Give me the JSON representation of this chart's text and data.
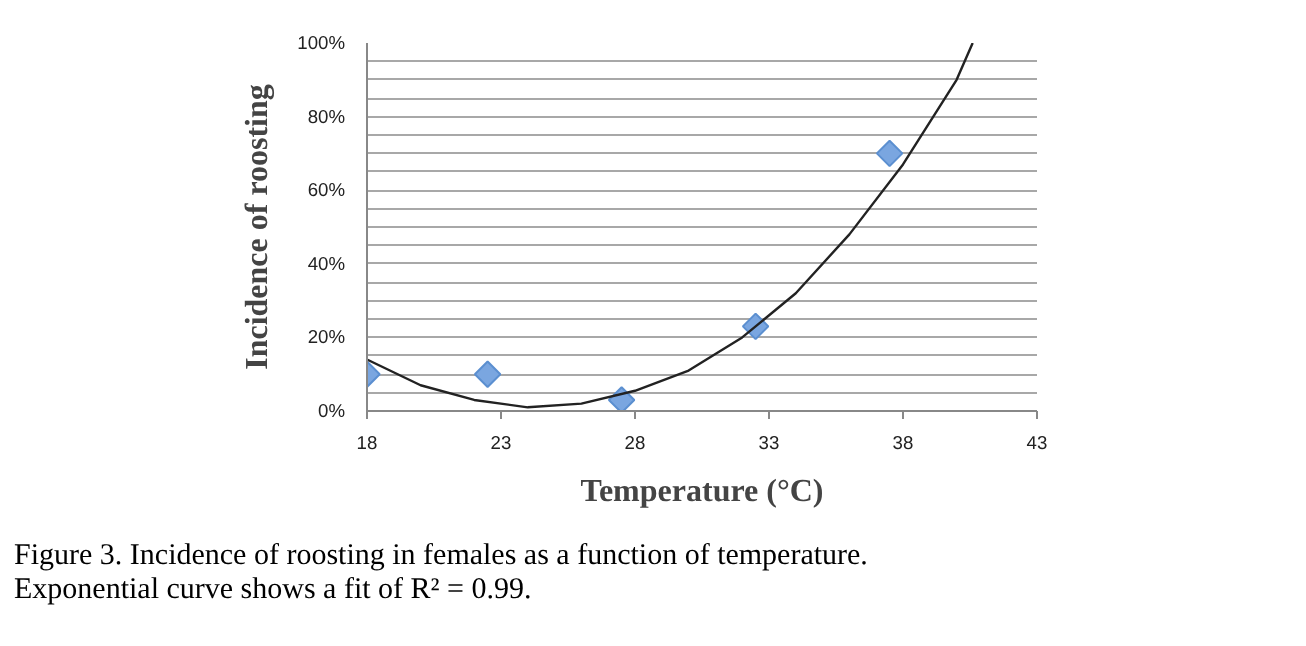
{
  "chart_data": {
    "type": "scatter",
    "xlabel": "Temperature (°C)",
    "ylabel": "Incidence of roosting",
    "x": [
      18,
      22.5,
      27.5,
      32.5,
      37.5
    ],
    "series": [
      {
        "color": "#7aa6e0",
        "marker": "diamond",
        "values": [
          10,
          10,
          3,
          23,
          70
        ]
      },
      {
        "type": "line",
        "color": "#222222",
        "marker": "none",
        "line_style": "solid",
        "x": [
          18,
          20,
          22,
          24,
          26,
          28,
          30,
          32,
          34,
          36,
          38,
          40,
          40.6
        ],
        "values": [
          14,
          7,
          3,
          1,
          2,
          5.5,
          11,
          20,
          32,
          48,
          67,
          90,
          100
        ]
      }
    ],
    "xlim": [
      18,
      43
    ],
    "xticks": [
      18,
      23,
      28,
      33,
      38,
      43
    ],
    "ylim": [
      0,
      100
    ],
    "yticks": [
      {
        "value": 0,
        "label": "0%"
      },
      {
        "value": 5,
        "label": null
      },
      {
        "value": 10,
        "label": null
      },
      {
        "value": 15,
        "label": null
      },
      {
        "value": 20,
        "label": "20%"
      },
      {
        "value": 25,
        "label": null
      },
      {
        "value": 30,
        "label": null
      },
      {
        "value": 35,
        "label": null
      },
      {
        "value": 40,
        "label": "40%"
      },
      {
        "value": 45,
        "label": null
      },
      {
        "value": 50,
        "label": null
      },
      {
        "value": 55,
        "label": null
      },
      {
        "value": 60,
        "label": "60%"
      },
      {
        "value": 65,
        "label": null
      },
      {
        "value": 70,
        "label": null
      },
      {
        "value": 75,
        "label": null
      },
      {
        "value": 80,
        "label": "80%"
      },
      {
        "value": 85,
        "label": null
      },
      {
        "value": 90,
        "label": null
      },
      {
        "value": 95,
        "label": null
      },
      {
        "value": 100,
        "label": "100%"
      }
    ],
    "grid": "y",
    "annotations": [
      "Figure 3. Incidence of roosting in females as a function of temperature. Exponential curve shows a fit of R² = 0.99."
    ]
  }
}
